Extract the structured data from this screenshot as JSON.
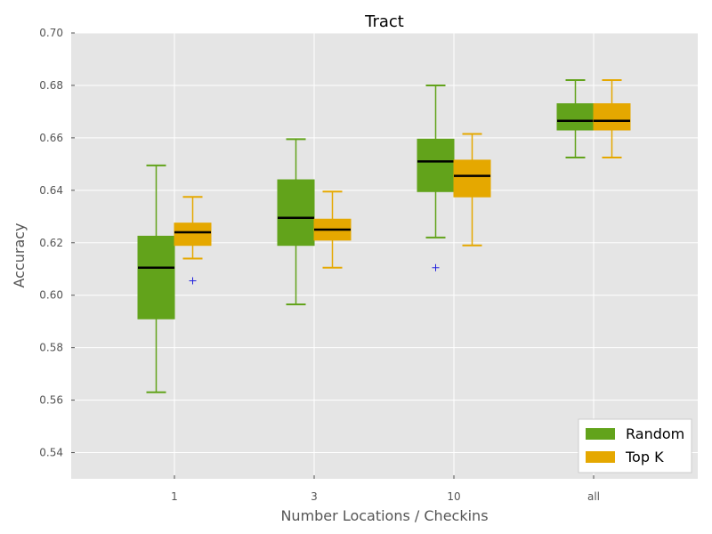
{
  "chart_data": {
    "type": "box",
    "title": "Tract",
    "xlabel": "Number Locations / Checkins",
    "ylabel": "Accuracy",
    "ylim": [
      0.53,
      0.7
    ],
    "yticks": [
      "0.54",
      "0.56",
      "0.58",
      "0.60",
      "0.62",
      "0.64",
      "0.66",
      "0.68",
      "0.70"
    ],
    "categories": [
      "1",
      "3",
      "10",
      "all"
    ],
    "grid": true,
    "legend_position": "bottom-right",
    "series": [
      {
        "name": "Random",
        "color": "#62A31B",
        "boxes": [
          {
            "whislo": 0.563,
            "q1": 0.591,
            "med": 0.6105,
            "q3": 0.6225,
            "whishi": 0.6495,
            "fliers": []
          },
          {
            "whislo": 0.5965,
            "q1": 0.619,
            "med": 0.6295,
            "q3": 0.644,
            "whishi": 0.6595,
            "fliers": []
          },
          {
            "whislo": 0.622,
            "q1": 0.6395,
            "med": 0.651,
            "q3": 0.6595,
            "whishi": 0.68,
            "fliers": [
              0.6105
            ]
          },
          {
            "whislo": 0.6525,
            "q1": 0.663,
            "med": 0.6665,
            "q3": 0.673,
            "whishi": 0.682,
            "fliers": []
          }
        ]
      },
      {
        "name": "Top K",
        "color": "#E5A800",
        "boxes": [
          {
            "whislo": 0.614,
            "q1": 0.619,
            "med": 0.624,
            "q3": 0.6275,
            "whishi": 0.6375,
            "fliers": [
              0.6055
            ]
          },
          {
            "whislo": 0.6105,
            "q1": 0.621,
            "med": 0.625,
            "q3": 0.629,
            "whishi": 0.6395,
            "fliers": []
          },
          {
            "whislo": 0.619,
            "q1": 0.6375,
            "med": 0.6455,
            "q3": 0.6515,
            "whishi": 0.6615,
            "fliers": []
          },
          {
            "whislo": 0.6525,
            "q1": 0.663,
            "med": 0.6665,
            "q3": 0.673,
            "whishi": 0.682,
            "fliers": []
          }
        ]
      }
    ]
  }
}
